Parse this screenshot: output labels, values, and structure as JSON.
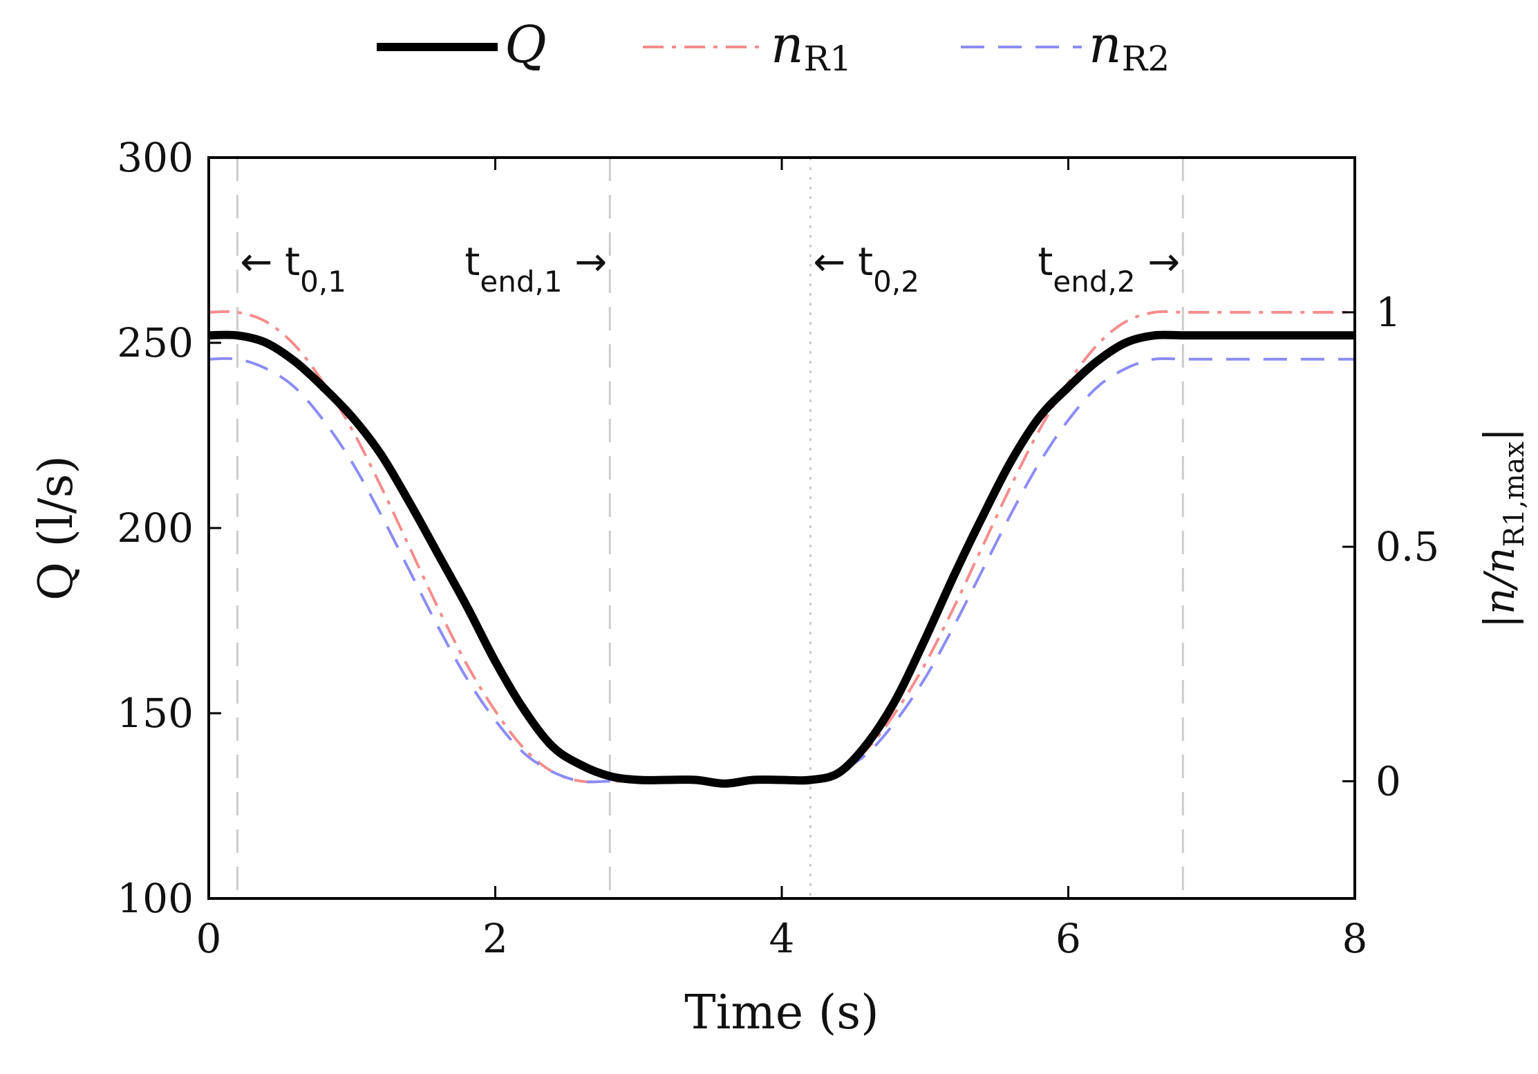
{
  "chart_data": {
    "type": "line",
    "title": "",
    "xlabel": "Time (s)",
    "ylabel": "Q (l/s)",
    "y2label": "|n/n_R1,max|",
    "y2label_main": "|n/n",
    "y2label_sub": "R1,max",
    "y2label_end": "|",
    "xlim": [
      0,
      8
    ],
    "ylim": [
      100,
      300
    ],
    "y2lim": [
      -0.25,
      1.33
    ],
    "grid": false,
    "legend_position": "top-center",
    "xticks": [
      0,
      2,
      4,
      6,
      8
    ],
    "xtick_labels": [
      "0",
      "2",
      "4",
      "6",
      "8"
    ],
    "yticks": [
      100,
      150,
      200,
      250,
      300
    ],
    "ytick_labels": [
      "100",
      "150",
      "200",
      "250",
      "300"
    ],
    "y2ticks": [
      0,
      0.5,
      1
    ],
    "y2tick_labels": [
      "0",
      "0.5",
      "1"
    ],
    "series": [
      {
        "name": "Q",
        "legend_main": "Q",
        "legend_sub": "",
        "axis": "left",
        "color": "#000000",
        "style": "solid",
        "x": [
          0,
          0.2,
          0.4,
          0.6,
          0.8,
          1.0,
          1.2,
          1.4,
          1.6,
          1.8,
          2.0,
          2.2,
          2.4,
          2.6,
          2.8,
          3.0,
          3.2,
          3.4,
          3.6,
          3.8,
          4.0,
          4.2,
          4.4,
          4.6,
          4.8,
          5.0,
          5.2,
          5.4,
          5.6,
          5.8,
          6.0,
          6.2,
          6.4,
          6.6,
          6.8,
          7.0,
          7.2,
          7.4,
          7.6,
          7.8,
          8.0
        ],
        "values": [
          252,
          252,
          250,
          245,
          238,
          230,
          220,
          207,
          193,
          179,
          164,
          151,
          141,
          136,
          133,
          132,
          132,
          132,
          131,
          132,
          132,
          132,
          134,
          142,
          154,
          170,
          187,
          203,
          218,
          230,
          238,
          245,
          250,
          252,
          252,
          252,
          252,
          252,
          252,
          252,
          252
        ]
      },
      {
        "name": "n_R1",
        "legend_main": "n",
        "legend_sub": "R1",
        "axis": "right",
        "color": "#f58c8c",
        "style": "dashdot",
        "x": [
          0,
          0.2,
          0.4,
          0.6,
          0.8,
          1.0,
          1.2,
          1.4,
          1.6,
          1.8,
          2.0,
          2.2,
          2.4,
          2.6,
          2.8,
          3.0,
          3.2,
          3.4,
          3.6,
          3.8,
          4.0,
          4.2,
          4.4,
          4.6,
          4.8,
          5.0,
          5.2,
          5.4,
          5.6,
          5.8,
          6.0,
          6.2,
          6.4,
          6.6,
          6.8,
          7.0,
          7.2,
          7.4,
          7.6,
          7.8,
          8.0
        ],
        "values": [
          1.0,
          1.0,
          0.98,
          0.93,
          0.85,
          0.75,
          0.63,
          0.5,
          0.37,
          0.25,
          0.15,
          0.07,
          0.02,
          0.0,
          0.0,
          0.0,
          0.0,
          0.0,
          0.0,
          0.0,
          0.0,
          0.0,
          0.02,
          0.07,
          0.15,
          0.25,
          0.37,
          0.5,
          0.63,
          0.75,
          0.85,
          0.93,
          0.98,
          1.0,
          1.0,
          1.0,
          1.0,
          1.0,
          1.0,
          1.0,
          1.0
        ]
      },
      {
        "name": "n_R2",
        "legend_main": "n",
        "legend_sub": "R2",
        "axis": "right",
        "color": "#8c8cf5",
        "style": "dashed",
        "x": [
          0,
          0.2,
          0.4,
          0.6,
          0.8,
          1.0,
          1.2,
          1.4,
          1.6,
          1.8,
          2.0,
          2.2,
          2.4,
          2.6,
          2.8,
          3.0,
          3.2,
          3.4,
          3.6,
          3.8,
          4.0,
          4.2,
          4.4,
          4.6,
          4.8,
          5.0,
          5.2,
          5.4,
          5.6,
          5.8,
          6.0,
          6.2,
          6.4,
          6.6,
          6.8,
          7.0,
          7.2,
          7.4,
          7.6,
          7.8,
          8.0
        ],
        "values": [
          0.9,
          0.9,
          0.88,
          0.84,
          0.77,
          0.68,
          0.57,
          0.45,
          0.33,
          0.22,
          0.13,
          0.06,
          0.02,
          0.0,
          0.0,
          0.0,
          0.0,
          0.0,
          0.0,
          0.0,
          0.0,
          0.0,
          0.02,
          0.06,
          0.13,
          0.22,
          0.33,
          0.45,
          0.57,
          0.68,
          0.77,
          0.84,
          0.88,
          0.9,
          0.9,
          0.9,
          0.9,
          0.9,
          0.9,
          0.9,
          0.9
        ]
      }
    ],
    "vertical_markers": [
      {
        "x": 0.2,
        "style": "dashed",
        "color": "#cccccc"
      },
      {
        "x": 2.8,
        "style": "dashed",
        "color": "#cccccc"
      },
      {
        "x": 4.2,
        "style": "dotted",
        "color": "#cccccc"
      },
      {
        "x": 6.8,
        "style": "dashed",
        "color": "#cccccc"
      }
    ],
    "annotations": [
      {
        "prefix": "← t",
        "sub": "0,1",
        "suffix": "",
        "x": 0.2,
        "anchor": "start"
      },
      {
        "prefix": "t",
        "sub": "end,1",
        "suffix": " →",
        "x": 2.8,
        "anchor": "end"
      },
      {
        "prefix": "← t",
        "sub": "0,2",
        "suffix": "",
        "x": 4.2,
        "anchor": "start"
      },
      {
        "prefix": "t",
        "sub": "end,2",
        "suffix": " →",
        "x": 6.8,
        "anchor": "end"
      }
    ]
  }
}
